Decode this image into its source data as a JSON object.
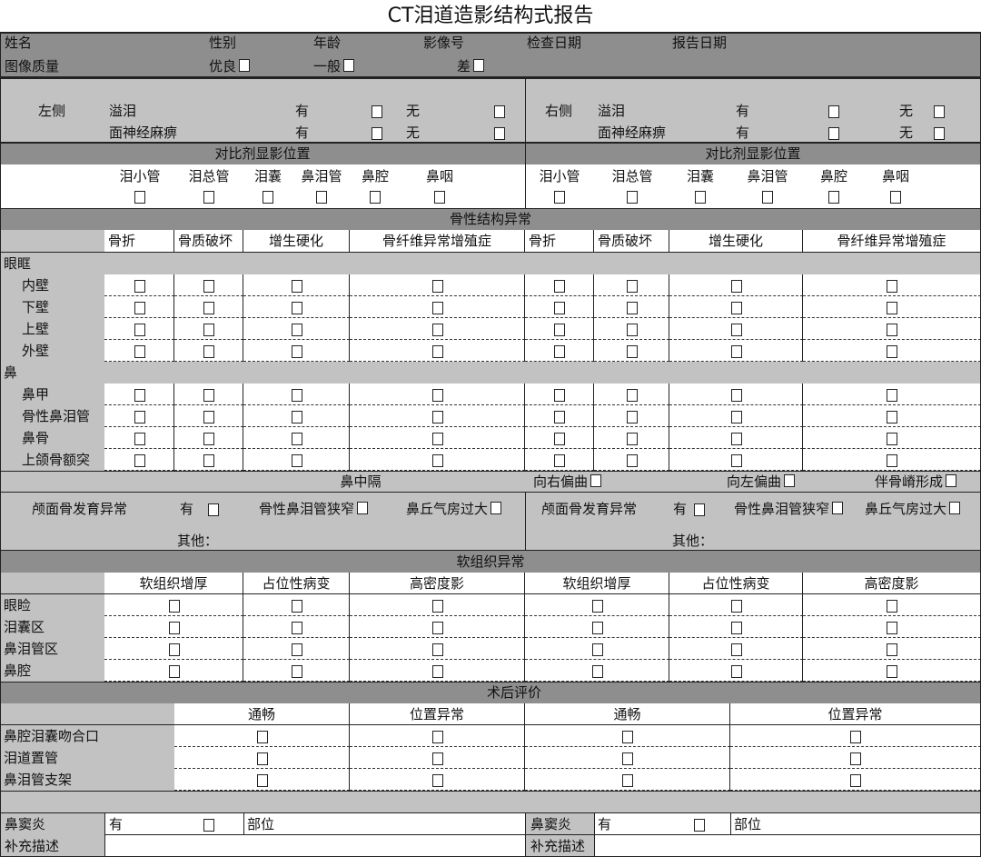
{
  "title": "CT泪道造影结构式报告",
  "patient": {
    "labels": [
      "姓名",
      "性别",
      "年龄",
      "影像号",
      "检查日期",
      "报告日期"
    ]
  },
  "image_quality": {
    "label": "图像质量",
    "options": [
      "优良",
      "一般",
      "差"
    ]
  },
  "symptoms": {
    "left": {
      "side": "左侧",
      "items": [
        {
          "name": "溢泪",
          "yes": "有",
          "no": "无"
        },
        {
          "name": "面神经麻痹",
          "yes": "有",
          "no": "无"
        }
      ]
    },
    "right": {
      "side": "右侧",
      "items": [
        {
          "name": "溢泪",
          "yes": "有",
          "no": "无"
        },
        {
          "name": "面神经麻痹",
          "yes": "有",
          "no": "无"
        }
      ]
    }
  },
  "contrast": {
    "title": "对比剂显影位置",
    "sites": [
      "泪小管",
      "泪总管",
      "泪囊",
      "鼻泪管",
      "鼻腔",
      "鼻咽"
    ]
  },
  "bone": {
    "title": "骨性结构异常",
    "columns": [
      "骨折",
      "骨质破坏",
      "增生硬化",
      "骨纤维异常增殖症"
    ],
    "groups": [
      {
        "name": "眼眶",
        "items": [
          "内壁",
          "下壁",
          "上壁",
          "外壁"
        ]
      },
      {
        "name": "鼻",
        "items": [
          "鼻甲",
          "骨性鼻泪管",
          "鼻骨",
          "上颌骨额突"
        ]
      }
    ]
  },
  "septum": {
    "label": "鼻中隔",
    "options": [
      "向右偏曲",
      "向左偏曲",
      "伴骨嵴形成"
    ]
  },
  "craniofacial": {
    "label": "颅面骨发育异常",
    "yes": "有",
    "options": [
      "骨性鼻泪管狭窄",
      "鼻丘气房过大"
    ],
    "other": "其他："
  },
  "soft": {
    "title": "软组织异常",
    "columns": [
      "软组织增厚",
      "占位性病变",
      "高密度影"
    ],
    "rows": [
      "眼睑",
      "泪囊区",
      "鼻泪管区",
      "鼻腔"
    ]
  },
  "post": {
    "title": "术后评价",
    "columns": [
      "通畅",
      "位置异常"
    ],
    "rows": [
      "鼻腔泪囊吻合口",
      "泪道置管",
      "鼻泪管支架"
    ]
  },
  "sinusitis": {
    "label": "鼻窦炎",
    "yes": "有",
    "location": "部位",
    "supplement": "补充描述"
  },
  "colors": {
    "dark_band": "#8e8e8e",
    "light_band": "#c2c2c2"
  }
}
